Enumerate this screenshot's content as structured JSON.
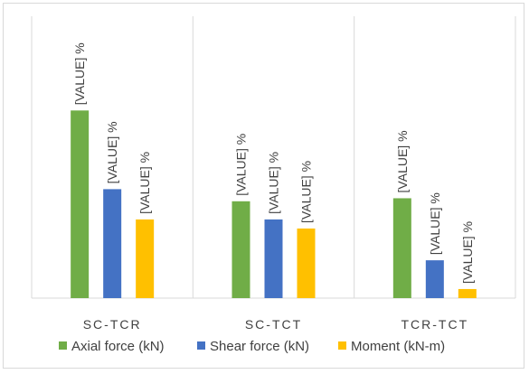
{
  "chart_data": {
    "type": "bar",
    "categories": [
      "SC-TCR",
      "SC-TCT",
      "TCR-TCT"
    ],
    "series": [
      {
        "name": "Axial force (kN)",
        "values": [
          62,
          32,
          33
        ]
      },
      {
        "name": "Shear force (kN)",
        "values": [
          36,
          26,
          12.5
        ]
      },
      {
        "name": "Moment (kN-m)",
        "values": [
          26,
          23,
          3
        ]
      }
    ],
    "data_label": "[VALUE] %",
    "grid": "vertical separators only",
    "legend_position": "bottom",
    "colors": [
      "#70ad47",
      "#4472c4",
      "#ffc000"
    ]
  }
}
